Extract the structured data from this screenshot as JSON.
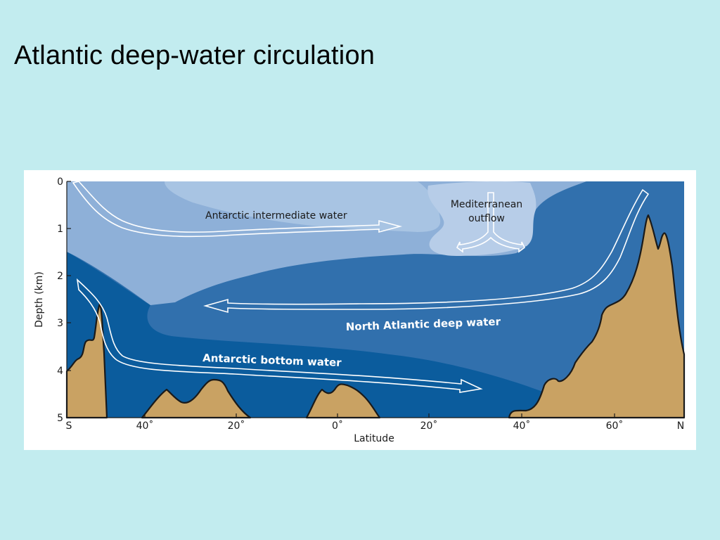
{
  "title": "Atlantic deep-water circulation",
  "colors": {
    "background": "#c2ecef",
    "intermediate_layer": "#8eb0d8",
    "surface_layer": "#a8c4e3",
    "mediterranean": "#b7cde8",
    "deep_layer": "#3170ad",
    "bottom_layer": "#0b5c9d",
    "seafloor": "#c9a263"
  },
  "diagram": {
    "y_axis": {
      "label": "Depth (km)",
      "ticks": [
        "0",
        "1",
        "2",
        "3",
        "4",
        "5"
      ]
    },
    "x_axis": {
      "label": "Latitude",
      "ticks": [
        "S",
        "40˚",
        "20˚",
        "0˚",
        "20˚",
        "40˚",
        "60˚",
        "N"
      ]
    },
    "water_masses": {
      "intermediate": "Antarctic intermediate water",
      "mediterranean_line1": "Mediterranean",
      "mediterranean_line2": "outflow",
      "north_atlantic": "North Atlantic deep water",
      "bottom": "Antarctic bottom water"
    }
  }
}
